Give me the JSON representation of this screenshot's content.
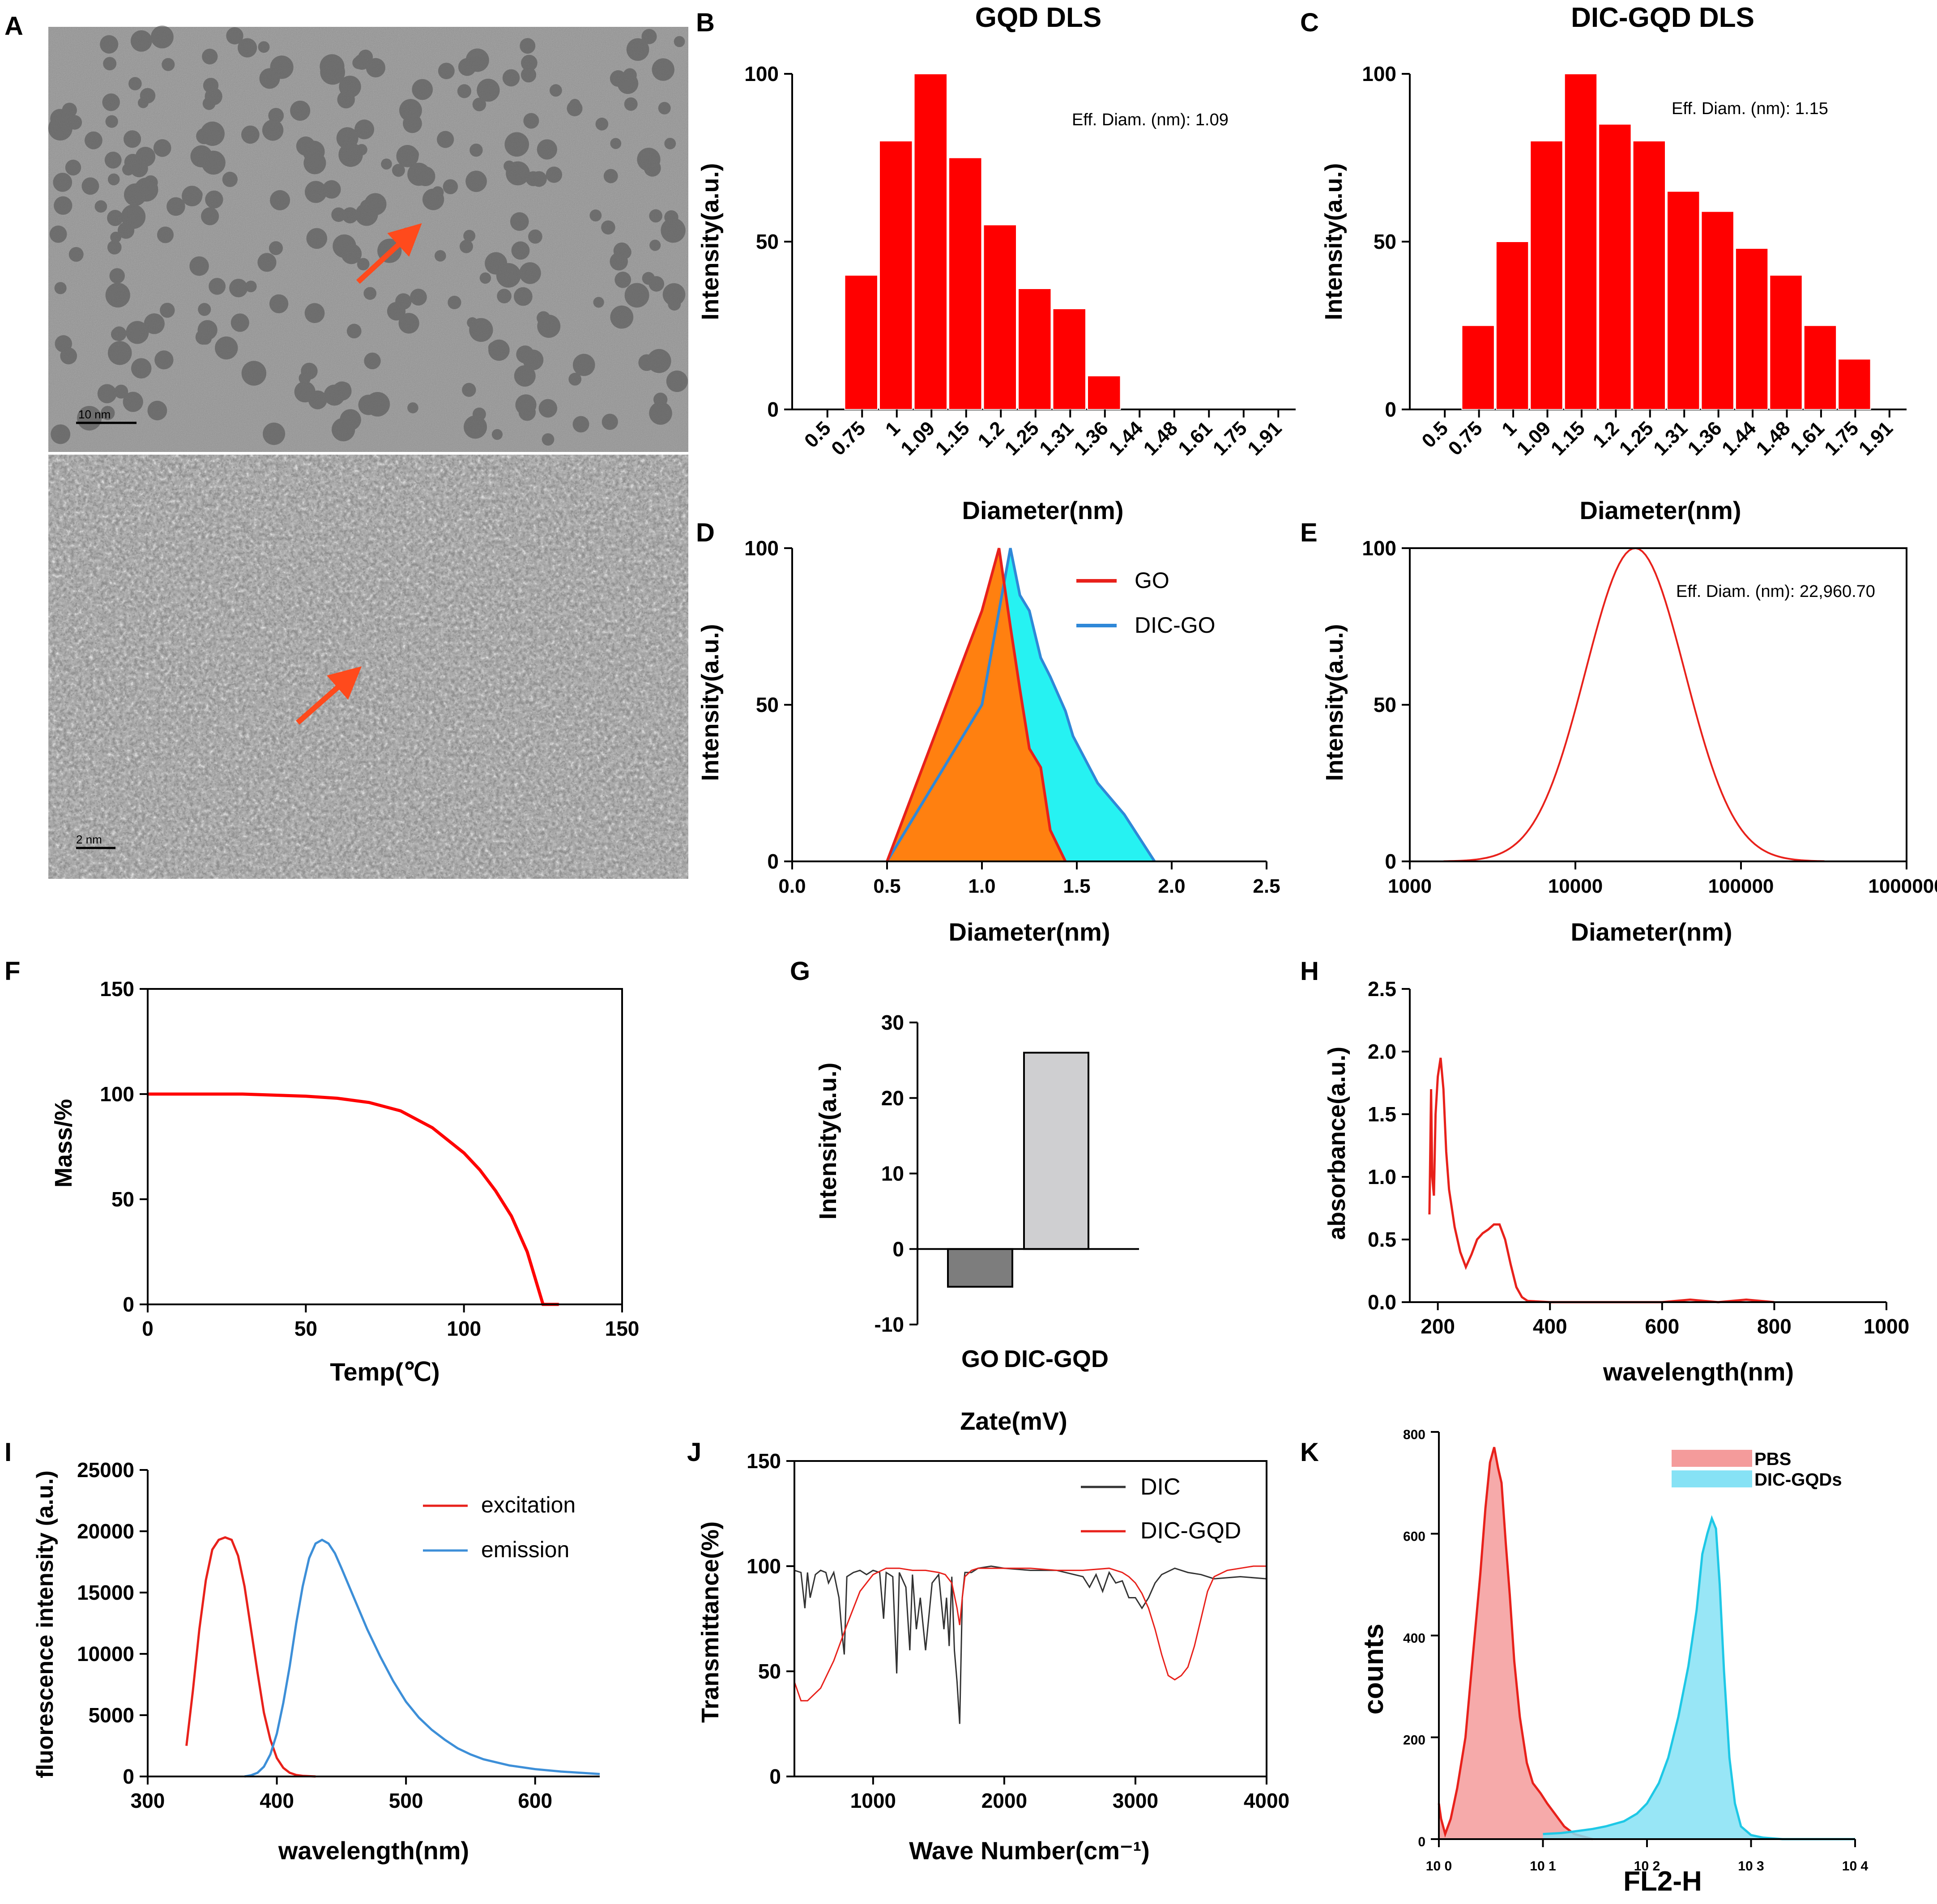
{
  "figure": {
    "panel_labels": [
      "A",
      "B",
      "C",
      "D",
      "E",
      "F",
      "G",
      "H",
      "I",
      "J",
      "K"
    ]
  },
  "micrographs": {
    "top_scale_label": "10 nm",
    "bottom_scale_label": "2 nm",
    "arrow_color": "#ff4a1c"
  },
  "chart_data": [
    {
      "id": "B",
      "type": "bar",
      "title": "GQD DLS",
      "xlabel": "Diameter(nm)",
      "ylabel": "Intensity(a.u.)",
      "categories": [
        "0.5",
        "0.75",
        "1",
        "1.09",
        "1.15",
        "1.2",
        "1.25",
        "1.31",
        "1.36",
        "1.44",
        "1.48",
        "1.61",
        "1.75",
        "1.91"
      ],
      "values": [
        0,
        40,
        80,
        100,
        75,
        55,
        36,
        30,
        10,
        0,
        0,
        0,
        0,
        0
      ],
      "yticks": [
        0,
        50,
        100
      ],
      "ylim": [
        0,
        100
      ],
      "annotation": "Eff. Diam. (nm): 1.09",
      "color": "#ff0000"
    },
    {
      "id": "C",
      "type": "bar",
      "title": "DIC-GQD DLS",
      "xlabel": "Diameter(nm)",
      "ylabel": "Intensity(a.u.)",
      "categories": [
        "0.5",
        "0.75",
        "1",
        "1.09",
        "1.15",
        "1.2",
        "1.25",
        "1.31",
        "1.36",
        "1.44",
        "1.48",
        "1.61",
        "1.75",
        "1.91"
      ],
      "values": [
        0,
        25,
        50,
        80,
        100,
        85,
        80,
        65,
        59,
        48,
        40,
        25,
        15,
        0
      ],
      "yticks": [
        0,
        50,
        100
      ],
      "ylim": [
        0,
        100
      ],
      "annotation": "Eff. Diam. (nm): 1.15",
      "color": "#ff0000"
    },
    {
      "id": "D",
      "type": "area",
      "xlabel": "Diameter(nm)",
      "ylabel": "Intensity(a.u.)",
      "xlim": [
        0,
        2.5
      ],
      "ylim": [
        0,
        100
      ],
      "xticks": [
        "0.0",
        "0.5",
        "1.0",
        "1.5",
        "2.0",
        "2.5"
      ],
      "yticks": [
        0,
        50,
        100
      ],
      "series": [
        {
          "name": "DIC-GO",
          "line": "#2f88d8",
          "fill": "#26f2f2",
          "x": [
            0.5,
            0.75,
            1.0,
            1.09,
            1.15,
            1.2,
            1.25,
            1.31,
            1.36,
            1.44,
            1.48,
            1.61,
            1.75,
            1.91
          ],
          "y": [
            0,
            25,
            50,
            80,
            100,
            85,
            80,
            65,
            59,
            48,
            40,
            25,
            15,
            0
          ]
        },
        {
          "name": "GO",
          "line": "#e8211b",
          "fill": "#ff8010",
          "x": [
            0.5,
            0.75,
            1.0,
            1.09,
            1.15,
            1.2,
            1.25,
            1.31,
            1.36,
            1.44
          ],
          "y": [
            0,
            40,
            80,
            100,
            75,
            55,
            36,
            30,
            10,
            0
          ]
        }
      ]
    },
    {
      "id": "E",
      "type": "line",
      "xscale": "log",
      "xlabel": "Diameter(nm)",
      "ylabel": "Intensity(a.u.)",
      "xlim": [
        1000,
        1000000
      ],
      "ylim": [
        0,
        100
      ],
      "xticks": [
        "1000",
        "10000",
        "100000",
        "1000000"
      ],
      "yticks": [
        0,
        50,
        100
      ],
      "annotation": "Eff. Diam. (nm): 22,960.70",
      "peak": 22960.7,
      "curve_range": [
        1600,
        320000
      ],
      "sigma_log10": 0.3,
      "color": "#e8211b"
    },
    {
      "id": "F",
      "type": "line",
      "xlabel": "Temp(℃)",
      "ylabel": "Mass/%",
      "xlim": [
        0,
        150
      ],
      "ylim": [
        0,
        150
      ],
      "xticks": [
        0,
        50,
        100,
        150
      ],
      "yticks": [
        0,
        50,
        100,
        150
      ],
      "x": [
        0,
        30,
        50,
        60,
        70,
        80,
        90,
        100,
        105,
        110,
        115,
        120,
        125,
        130
      ],
      "y": [
        100,
        100,
        99,
        98,
        96,
        92,
        84,
        72,
        64,
        54,
        42,
        25,
        0,
        0
      ],
      "color": "#ff0000"
    },
    {
      "id": "G",
      "type": "bar",
      "xlabel": "Zate(mV)",
      "ylabel": "Intensity(a.u.)",
      "categories": [
        "GO",
        "DIC-GQD"
      ],
      "values": [
        -5,
        26
      ],
      "ylim": [
        -10,
        30
      ],
      "yticks": [
        -10,
        0,
        10,
        20,
        30
      ],
      "colors": [
        "#7d7d7d",
        "#cfcfd1"
      ]
    },
    {
      "id": "H",
      "type": "line",
      "xlabel": "wavelength(nm)",
      "ylabel": "absorbance(a.u.)",
      "xlim": [
        150,
        1000
      ],
      "ylim": [
        0,
        2.5
      ],
      "xticks": [
        200,
        400,
        600,
        800,
        1000
      ],
      "yticks": [
        "0.0",
        "0.5",
        "1.0",
        "1.5",
        "2.0",
        "2.5"
      ],
      "x": [
        185,
        188,
        190,
        193,
        196,
        200,
        205,
        210,
        215,
        220,
        230,
        240,
        250,
        260,
        270,
        280,
        290,
        300,
        310,
        320,
        330,
        340,
        350,
        360,
        400,
        600,
        650,
        700,
        750,
        800
      ],
      "y": [
        0.7,
        1.7,
        1.0,
        0.85,
        1.5,
        1.8,
        1.95,
        1.7,
        1.2,
        0.9,
        0.6,
        0.4,
        0.28,
        0.38,
        0.5,
        0.55,
        0.58,
        0.62,
        0.62,
        0.5,
        0.3,
        0.12,
        0.04,
        0.01,
        0.0,
        0.0,
        0.02,
        0.0,
        0.02,
        0.0
      ],
      "color": "#e8211b"
    },
    {
      "id": "I",
      "type": "line",
      "xlabel": "wavelength(nm)",
      "ylabel": "fluorescence intensity  (a.u.)",
      "xlim": [
        300,
        650
      ],
      "ylim": [
        0,
        25000
      ],
      "xticks": [
        300,
        400,
        500,
        600
      ],
      "yticks": [
        0,
        5000,
        10000,
        15000,
        20000,
        25000
      ],
      "series": [
        {
          "name": "excitation",
          "color": "#e8211b",
          "x": [
            330,
            335,
            340,
            345,
            350,
            355,
            360,
            365,
            370,
            375,
            380,
            385,
            390,
            395,
            400,
            405,
            410,
            415,
            420,
            430
          ],
          "y": [
            2500,
            7000,
            12000,
            16000,
            18500,
            19300,
            19500,
            19300,
            18000,
            15500,
            12000,
            8500,
            5200,
            3000,
            1500,
            700,
            300,
            120,
            50,
            0
          ]
        },
        {
          "name": "emission",
          "color": "#3d8fd8",
          "x": [
            375,
            380,
            385,
            390,
            395,
            400,
            405,
            410,
            415,
            420,
            425,
            430,
            435,
            440,
            445,
            450,
            460,
            470,
            480,
            490,
            500,
            510,
            520,
            530,
            540,
            550,
            560,
            580,
            600,
            620,
            650
          ],
          "y": [
            0,
            100,
            300,
            800,
            1800,
            3500,
            6000,
            9000,
            12500,
            15500,
            17800,
            19000,
            19300,
            19000,
            18200,
            17000,
            14500,
            12000,
            9800,
            7800,
            6100,
            4800,
            3800,
            3000,
            2300,
            1800,
            1400,
            900,
            600,
            400,
            200
          ]
        }
      ]
    },
    {
      "id": "J",
      "type": "line",
      "xlabel": "Wave  Number(cm⁻¹)",
      "ylabel": "Transmittance(%)",
      "xlim": [
        400,
        4000
      ],
      "ylim": [
        0,
        150
      ],
      "xticks": [
        1000,
        2000,
        3000,
        4000
      ],
      "yticks": [
        0,
        50,
        100,
        150
      ],
      "series": [
        {
          "name": "DIC",
          "color": "#333333",
          "x": [
            400,
            450,
            480,
            500,
            520,
            560,
            600,
            640,
            660,
            700,
            740,
            760,
            780,
            800,
            850,
            900,
            950,
            1000,
            1050,
            1080,
            1100,
            1150,
            1180,
            1200,
            1250,
            1280,
            1300,
            1330,
            1360,
            1400,
            1450,
            1500,
            1540,
            1560,
            1580,
            1600,
            1620,
            1640,
            1660,
            1680,
            1700,
            1750,
            1800,
            1900,
            2000,
            2200,
            2400,
            2600,
            2650,
            2700,
            2750,
            2800,
            2850,
            2900,
            2950,
            3000,
            3050,
            3100,
            3150,
            3200,
            3300,
            3400,
            3500,
            3600,
            3800,
            4000
          ],
          "y": [
            98,
            97,
            80,
            97,
            85,
            96,
            98,
            97,
            92,
            97,
            85,
            70,
            58,
            95,
            97,
            98,
            96,
            98,
            97,
            75,
            97,
            95,
            49,
            97,
            90,
            60,
            96,
            70,
            85,
            60,
            92,
            96,
            70,
            85,
            62,
            95,
            60,
            45,
            25,
            85,
            97,
            97,
            99,
            100,
            99,
            98,
            98,
            95,
            90,
            96,
            88,
            97,
            92,
            93,
            85,
            85,
            80,
            85,
            92,
            96,
            99,
            97,
            96,
            94,
            95,
            94
          ]
        },
        {
          "name": "DIC-GQD",
          "color": "#e8211b",
          "x": [
            400,
            450,
            500,
            600,
            700,
            800,
            900,
            1000,
            1100,
            1200,
            1300,
            1400,
            1500,
            1550,
            1600,
            1640,
            1660,
            1680,
            1700,
            1750,
            1800,
            1900,
            2000,
            2200,
            2400,
            2600,
            2800,
            2900,
            2950,
            3000,
            3050,
            3100,
            3150,
            3200,
            3250,
            3300,
            3350,
            3400,
            3450,
            3500,
            3550,
            3600,
            3700,
            3800,
            3900,
            4000
          ],
          "y": [
            45,
            36,
            36,
            42,
            55,
            72,
            88,
            96,
            99,
            99,
            98,
            98,
            97,
            96,
            92,
            80,
            72,
            85,
            95,
            98,
            99,
            99,
            99,
            99,
            98,
            98,
            99,
            97,
            95,
            92,
            87,
            80,
            70,
            58,
            48,
            46,
            48,
            52,
            62,
            75,
            88,
            95,
            98,
            99,
            100,
            100
          ]
        }
      ]
    },
    {
      "id": "K",
      "type": "area",
      "xscale": "log",
      "xlabel": "FL2-H",
      "ylabel": "counts",
      "xlim": [
        1,
        10000
      ],
      "ylim": [
        0,
        800
      ],
      "xticks": [
        "10 0",
        "10 1",
        "10 2",
        "10 3",
        "10 4"
      ],
      "yticks": [
        0,
        200,
        400,
        600,
        800
      ],
      "series": [
        {
          "name": "PBS",
          "color": "#f49b9b",
          "line": "#e8211b",
          "x": [
            1,
            1.05,
            1.15,
            1.3,
            1.5,
            1.8,
            2.1,
            2.5,
            2.8,
            3.1,
            3.4,
            3.7,
            4.0,
            4.4,
            4.8,
            5.3,
            6,
            7,
            8,
            9.5,
            11,
            13,
            16,
            20,
            30
          ],
          "y": [
            70,
            40,
            10,
            40,
            100,
            200,
            350,
            520,
            650,
            740,
            770,
            730,
            700,
            580,
            480,
            350,
            240,
            150,
            110,
            90,
            70,
            50,
            25,
            10,
            0
          ]
        },
        {
          "name": "DIC-GQDs",
          "color": "#86e2f5",
          "line": "#1ec8e6",
          "x": [
            10,
            15,
            20,
            30,
            40,
            60,
            80,
            100,
            130,
            160,
            200,
            250,
            300,
            340,
            380,
            420,
            460,
            500,
            550,
            620,
            700,
            800,
            1000,
            1300,
            2000,
            10000
          ],
          "y": [
            10,
            12,
            15,
            20,
            25,
            35,
            50,
            70,
            110,
            160,
            240,
            340,
            450,
            560,
            600,
            630,
            610,
            500,
            330,
            160,
            70,
            25,
            8,
            3,
            0,
            0
          ]
        }
      ]
    }
  ]
}
